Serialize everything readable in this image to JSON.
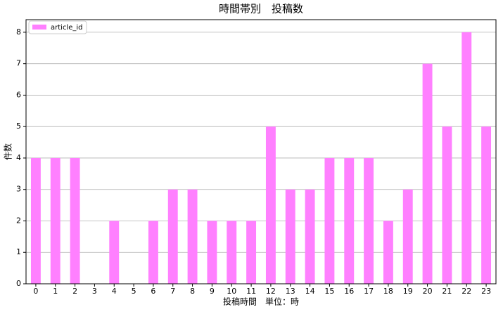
{
  "chart_data": {
    "type": "bar",
    "title": "時間帯別　投稿数",
    "x_label": "投稿時間　単位：時",
    "y_label": "件数",
    "categories": [
      "0",
      "1",
      "2",
      "3",
      "4",
      "5",
      "6",
      "7",
      "8",
      "9",
      "10",
      "11",
      "12",
      "13",
      "14",
      "15",
      "16",
      "17",
      "18",
      "19",
      "20",
      "21",
      "22",
      "23"
    ],
    "series": [
      {
        "name": "article_id",
        "color": "#ff80ff",
        "values": [
          4,
          4,
          4,
          0,
          2,
          0,
          2,
          3,
          3,
          2,
          2,
          2,
          5,
          3,
          3,
          4,
          4,
          4,
          2,
          3,
          7,
          5,
          8,
          5
        ]
      }
    ],
    "ylim": [
      0,
      8.4
    ],
    "yticks": [
      0,
      1,
      2,
      3,
      4,
      5,
      6,
      7,
      8
    ],
    "grid": true,
    "legend": "upper-left"
  }
}
